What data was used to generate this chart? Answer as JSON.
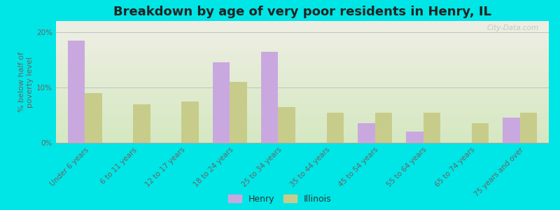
{
  "title": "Breakdown by age of very poor residents in Henry, IL",
  "ylabel": "% below half of\npoverty level",
  "categories": [
    "Under 6 years",
    "6 to 11 years",
    "12 to 17 years",
    "18 to 24 years",
    "25 to 34 years",
    "35 to 44 years",
    "45 to 54 years",
    "55 to 64 years",
    "65 to 74 years",
    "75 years and over"
  ],
  "henry_values": [
    18.5,
    0,
    0,
    14.5,
    16.5,
    0,
    3.5,
    2.0,
    0,
    4.5
  ],
  "illinois_values": [
    9.0,
    7.0,
    7.5,
    11.0,
    6.5,
    5.5,
    5.5,
    5.5,
    3.5,
    5.5
  ],
  "henry_color": "#c9a8e0",
  "illinois_color": "#c8cc8a",
  "background_outer": "#00e5e5",
  "background_plot_top": "#eeeee4",
  "background_plot_bottom": "#d4e8c0",
  "ylim": [
    0,
    22
  ],
  "yticks": [
    0,
    10,
    20
  ],
  "ytick_labels": [
    "0%",
    "10%",
    "20%"
  ],
  "bar_width": 0.35,
  "title_fontsize": 13,
  "axis_label_fontsize": 8,
  "tick_fontsize": 7.5,
  "legend_labels": [
    "Henry",
    "Illinois"
  ],
  "watermark": "City-Data.com"
}
